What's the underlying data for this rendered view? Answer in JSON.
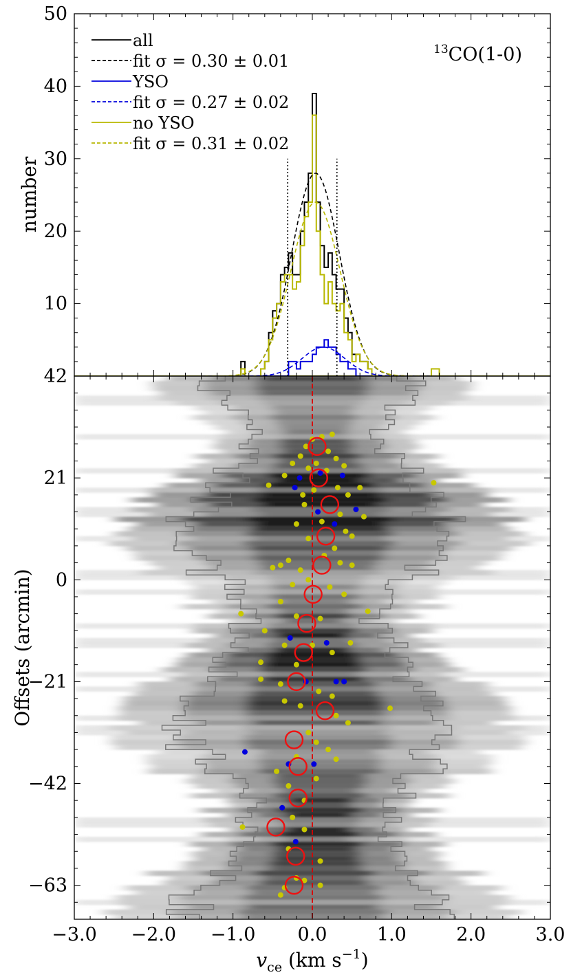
{
  "chart_data": [
    {
      "type": "bar",
      "panel": "histogram",
      "annotation": "13CO(1-0)",
      "annotation_sup": "13",
      "annotation_main": "CO(1-0)",
      "ylabel": "number",
      "xlim": [
        -3.0,
        3.0
      ],
      "ylim": [
        0,
        50
      ],
      "yticks": [
        10,
        20,
        30,
        40,
        50
      ],
      "bin_edges": [
        -0.9,
        -0.85,
        -0.8,
        -0.75,
        -0.7,
        -0.65,
        -0.6,
        -0.55,
        -0.5,
        -0.45,
        -0.4,
        -0.35,
        -0.3,
        -0.25,
        -0.2,
        -0.15,
        -0.1,
        -0.05,
        0.0,
        0.05,
        0.1,
        0.15,
        0.2,
        0.25,
        0.3,
        0.35,
        0.4,
        0.45,
        0.5,
        0.55,
        0.6,
        0.65,
        0.7,
        0.75,
        0.8,
        0.85,
        0.9,
        0.95,
        1.0
      ],
      "vlines": [
        -0.31,
        0.31
      ],
      "series": [
        {
          "name": "all",
          "role": "histogram",
          "color": "#000000",
          "counts": [
            2,
            0,
            0,
            0,
            0,
            1,
            2,
            6,
            9,
            10,
            14,
            15,
            17,
            14,
            14,
            20,
            24,
            28,
            39,
            24,
            18,
            15,
            17,
            14,
            12,
            12,
            8,
            6,
            3,
            3,
            2,
            2,
            1,
            0,
            0,
            0,
            0,
            0
          ]
        },
        {
          "name": "YSO",
          "role": "histogram",
          "color": "#0000dd",
          "counts": [
            0,
            0,
            0,
            0,
            0,
            0,
            0,
            0,
            0,
            0,
            0,
            0,
            2,
            2,
            1,
            2,
            2,
            2,
            3,
            4,
            4,
            5,
            4,
            4,
            3,
            2,
            2,
            1,
            1,
            0,
            0,
            0,
            0,
            0,
            0,
            0,
            0,
            0
          ]
        },
        {
          "name": "no YSO",
          "role": "histogram",
          "color": "#b8b800",
          "counts": [
            1,
            0,
            0,
            0,
            0,
            1,
            2,
            5,
            8,
            10,
            13,
            14,
            14,
            12,
            13,
            18,
            22,
            24,
            36,
            20,
            14,
            10,
            13,
            10,
            9,
            10,
            6,
            5,
            2,
            3,
            2,
            2,
            1,
            0,
            0,
            0,
            0,
            0
          ]
        },
        {
          "name": "fit σ = 0.30 ± 0.01",
          "role": "fit",
          "color": "#000000",
          "amp": 28,
          "mu": 0.04,
          "sigma": 0.3
        },
        {
          "name": "fit σ = 0.27 ± 0.02",
          "role": "fit",
          "color": "#0000dd",
          "amp": 4,
          "mu": 0.14,
          "sigma": 0.27
        },
        {
          "name": "fit σ = 0.31 ± 0.02",
          "role": "fit",
          "color": "#b8b800",
          "amp": 24,
          "mu": 0.04,
          "sigma": 0.31
        }
      ],
      "outlier_bins": [
        {
          "x0": 1.5,
          "x1": 1.6,
          "count": 1,
          "color": "#b8b800"
        }
      ],
      "legend": {
        "placement": "top-left",
        "entries": [
          {
            "label": "all",
            "color": "#000000",
            "dash": false
          },
          {
            "label": "fit σ = 0.30 ± 0.01",
            "color": "#000000",
            "dash": true
          },
          {
            "label": "YSO",
            "color": "#0000dd",
            "dash": false
          },
          {
            "label": "fit σ = 0.27 ± 0.02",
            "color": "#0000dd",
            "dash": true
          },
          {
            "label": "no YSO",
            "color": "#b8b800",
            "dash": false
          },
          {
            "label": "fit σ = 0.31 ± 0.02",
            "color": "#b8b800",
            "dash": true
          }
        ]
      }
    },
    {
      "type": "scatter",
      "panel": "position-velocity",
      "xlabel": "v_ce (km s⁻¹)",
      "xlabel_main": "v",
      "xlabel_sub": "ce",
      "xlabel_unit": " (km s",
      "xlabel_exp": "−1",
      "xlabel_close": ")",
      "ylabel": "Offsets (arcmin)",
      "xlim": [
        -3.0,
        3.0
      ],
      "ylim": [
        -70,
        42
      ],
      "xticks": [
        "−3.0",
        "−2.0",
        "−1.0",
        "0.0",
        "1.0",
        "2.0",
        "3.0"
      ],
      "xtick_values": [
        -3,
        -2,
        -1,
        0,
        1,
        2,
        3
      ],
      "yticks": [
        "42",
        "21",
        "0",
        "−21",
        "−42",
        "−63"
      ],
      "ytick_values": [
        42,
        21,
        0,
        -21,
        -42,
        -63
      ],
      "reference_line_x": 0.0,
      "background": "grayscale intensity map",
      "circles": [
        {
          "v": 0.06,
          "off": 27.5
        },
        {
          "v": 0.08,
          "off": 21.0
        },
        {
          "v": 0.22,
          "off": 15.5
        },
        {
          "v": 0.17,
          "off": 9.0
        },
        {
          "v": 0.12,
          "off": 3.0
        },
        {
          "v": 0.01,
          "off": -3.0
        },
        {
          "v": -0.07,
          "off": -9.0
        },
        {
          "v": -0.11,
          "off": -15.0
        },
        {
          "v": -0.2,
          "off": -21.0
        },
        {
          "v": 0.16,
          "off": -27.0
        },
        {
          "v": -0.23,
          "off": -33.0
        },
        {
          "v": -0.18,
          "off": -38.5
        },
        {
          "v": -0.18,
          "off": -45.0
        },
        {
          "v": -0.46,
          "off": -51.0
        },
        {
          "v": -0.21,
          "off": -57.0
        },
        {
          "v": -0.23,
          "off": -63.0
        }
      ],
      "yso_points": [
        {
          "v": -0.22,
          "off": 19.0
        },
        {
          "v": -0.16,
          "off": 21.0
        },
        {
          "v": 0.1,
          "off": 22.0
        },
        {
          "v": 0.38,
          "off": 21.5
        },
        {
          "v": 0.07,
          "off": 14.0
        },
        {
          "v": 0.28,
          "off": 11.5
        },
        {
          "v": 0.55,
          "off": 14.5
        },
        {
          "v": 0.18,
          "off": -13.0
        },
        {
          "v": -0.28,
          "off": -12.0
        },
        {
          "v": -0.08,
          "off": -21.0
        },
        {
          "v": 0.3,
          "off": -21.0
        },
        {
          "v": 0.4,
          "off": -21.0
        },
        {
          "v": -0.85,
          "off": -35.5
        },
        {
          "v": -0.3,
          "off": -38.0
        },
        {
          "v": 0.02,
          "off": -38.0
        },
        {
          "v": -0.38,
          "off": -47.0
        },
        {
          "v": -0.21,
          "off": -54.0
        }
      ],
      "no_yso_points": [
        {
          "v": 0.0,
          "off": 29.0
        },
        {
          "v": 0.12,
          "off": 29.5
        },
        {
          "v": 0.25,
          "off": 30.0
        },
        {
          "v": -0.08,
          "off": 27.5
        },
        {
          "v": 0.2,
          "off": 26.5
        },
        {
          "v": -0.15,
          "off": 25.5
        },
        {
          "v": 0.3,
          "off": 25.0
        },
        {
          "v": -0.25,
          "off": 24.0
        },
        {
          "v": 0.05,
          "off": 24.0
        },
        {
          "v": 0.4,
          "off": 23.5
        },
        {
          "v": -0.55,
          "off": 19.5
        },
        {
          "v": -0.35,
          "off": 21.5
        },
        {
          "v": -0.05,
          "off": 23.0
        },
        {
          "v": 0.18,
          "off": 22.5
        },
        {
          "v": 0.32,
          "off": 19.0
        },
        {
          "v": 0.45,
          "off": 17.5
        },
        {
          "v": -0.12,
          "off": 17.5
        },
        {
          "v": 0.02,
          "off": 18.5
        },
        {
          "v": 0.35,
          "off": 13.5
        },
        {
          "v": -0.1,
          "off": 15.5
        },
        {
          "v": 0.12,
          "off": 12.0
        },
        {
          "v": -0.2,
          "off": 11.5
        },
        {
          "v": 0.42,
          "off": 10.0
        },
        {
          "v": -0.05,
          "off": 8.5
        },
        {
          "v": 0.28,
          "off": 6.5
        },
        {
          "v": 0.6,
          "off": 19.0
        },
        {
          "v": 0.65,
          "off": 13.0
        },
        {
          "v": 1.53,
          "off": 20.0
        },
        {
          "v": 0.5,
          "off": 9.0
        },
        {
          "v": -0.4,
          "off": 3.0
        },
        {
          "v": -0.5,
          "off": 2.5
        },
        {
          "v": -0.3,
          "off": 4.0
        },
        {
          "v": 0.15,
          "off": 5.0
        },
        {
          "v": 0.35,
          "off": 3.5
        },
        {
          "v": 0.5,
          "off": 3.0
        },
        {
          "v": -0.15,
          "off": 2.0
        },
        {
          "v": -0.05,
          "off": 0.0
        },
        {
          "v": 0.22,
          "off": -1.5
        },
        {
          "v": -0.25,
          "off": -1.0
        },
        {
          "v": 0.4,
          "off": -3.0
        },
        {
          "v": -0.4,
          "off": -4.5
        },
        {
          "v": 0.7,
          "off": -6.5
        },
        {
          "v": -0.9,
          "off": -7.0
        },
        {
          "v": -0.2,
          "off": -7.5
        },
        {
          "v": 0.1,
          "off": -8.0
        },
        {
          "v": -0.6,
          "off": -10.5
        },
        {
          "v": -0.35,
          "off": -13.5
        },
        {
          "v": 0.0,
          "off": -13.5
        },
        {
          "v": 0.25,
          "off": -15.0
        },
        {
          "v": 0.48,
          "off": -13.0
        },
        {
          "v": -0.65,
          "off": -17.0
        },
        {
          "v": -0.2,
          "off": -17.5
        },
        {
          "v": -0.65,
          "off": -20.5
        },
        {
          "v": -0.4,
          "off": -21.5
        },
        {
          "v": 0.08,
          "off": -23.0
        },
        {
          "v": 0.25,
          "off": -24.0
        },
        {
          "v": -0.35,
          "off": -25.0
        },
        {
          "v": -0.15,
          "off": -26.0
        },
        {
          "v": 0.3,
          "off": -28.0
        },
        {
          "v": 0.45,
          "off": -29.5
        },
        {
          "v": -0.05,
          "off": -31.5
        },
        {
          "v": 0.05,
          "off": -33.5
        },
        {
          "v": 0.2,
          "off": -35.0
        },
        {
          "v": -0.2,
          "off": -36.5
        },
        {
          "v": 0.3,
          "off": -37.0
        },
        {
          "v": -0.45,
          "off": -39.5
        },
        {
          "v": 0.05,
          "off": -41.0
        },
        {
          "v": -0.3,
          "off": -42.5
        },
        {
          "v": -0.1,
          "off": -45.5
        },
        {
          "v": -0.25,
          "off": -49.0
        },
        {
          "v": -0.88,
          "off": -51.0
        },
        {
          "v": -0.1,
          "off": -51.5
        },
        {
          "v": -0.3,
          "off": -55.5
        },
        {
          "v": 0.1,
          "off": -58.0
        },
        {
          "v": -0.1,
          "off": -62.0
        },
        {
          "v": -0.35,
          "off": -63.5
        },
        {
          "v": -0.2,
          "off": -61.5
        },
        {
          "v": 0.1,
          "off": -63.0
        },
        {
          "v": -0.4,
          "off": -65.0
        },
        {
          "v": 0.98,
          "off": -26.5
        }
      ],
      "colors": {
        "circle": "#ee1111",
        "yso": "#0000dd",
        "no_yso": "#c8c800",
        "reference_line": "#dd0000",
        "profile": "#777777"
      }
    }
  ]
}
